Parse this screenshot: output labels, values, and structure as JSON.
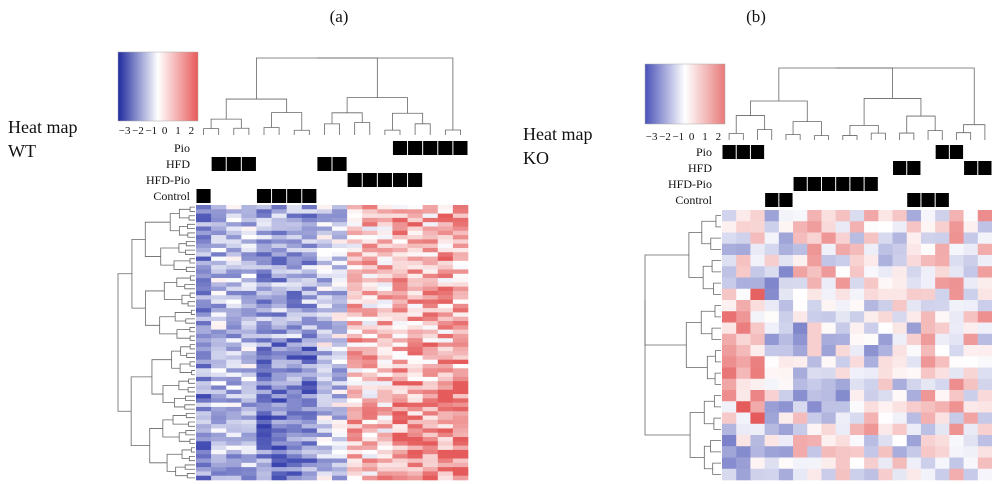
{
  "figure": {
    "panels": [
      {
        "panel_label": "(a)",
        "title_line1": "Heat map",
        "title_line2": "WT",
        "legend": {
          "ticks": [
            "−3",
            "−2",
            "−1",
            "0",
            "1",
            "2"
          ],
          "low_color": "#2a35a8",
          "mid_color": "#ffffff",
          "high_color": "#e55a5a"
        },
        "groups": [
          "Pio",
          "HFD",
          "HFD-Pio",
          "Control"
        ]
      },
      {
        "panel_label": "(b)",
        "title_line1": "Heat map",
        "title_line2": "KO",
        "legend": {
          "ticks": [
            "−3",
            "−2",
            "−1",
            "0",
            "1",
            "2"
          ],
          "low_color": "#2a35a8",
          "mid_color": "#ffffff",
          "high_color": "#e55a5a"
        },
        "groups": [
          "Pio",
          "HFD",
          "HFD-Pio",
          "Control"
        ]
      }
    ]
  },
  "chart_data": [
    {
      "type": "heatmap",
      "title": "",
      "colorscale_range": [
        -3,
        2
      ],
      "columns_count": 18,
      "rows_count": 64,
      "column_groups": {
        "Pio": [
          0,
          0,
          0,
          0,
          0,
          0,
          0,
          0,
          0,
          0,
          0,
          0,
          0,
          1,
          1,
          1,
          1,
          1
        ],
        "HFD": [
          0,
          1,
          1,
          1,
          0,
          0,
          0,
          0,
          1,
          1,
          0,
          0,
          0,
          0,
          0,
          0,
          0,
          0
        ],
        "HFD-Pio": [
          0,
          0,
          0,
          0,
          0,
          0,
          0,
          0,
          0,
          0,
          1,
          1,
          1,
          1,
          1,
          0,
          0,
          0
        ],
        "Control": [
          1,
          0,
          0,
          0,
          1,
          1,
          1,
          1,
          0,
          0,
          0,
          0,
          0,
          0,
          0,
          0,
          0,
          0
        ]
      },
      "pattern": "left columns predominantly negative (blue), right columns predominantly positive (red)"
    },
    {
      "type": "heatmap",
      "title": "",
      "colorscale_range": [
        -3,
        2
      ],
      "columns_count": 19,
      "rows_count": 24,
      "column_groups": {
        "Pio": [
          1,
          1,
          1,
          0,
          0,
          0,
          0,
          0,
          0,
          0,
          0,
          0,
          0,
          0,
          0,
          1,
          1,
          0,
          0
        ],
        "HFD": [
          0,
          0,
          0,
          0,
          0,
          0,
          0,
          0,
          0,
          0,
          0,
          0,
          1,
          1,
          0,
          0,
          0,
          1,
          1
        ],
        "HFD-Pio": [
          0,
          0,
          0,
          0,
          0,
          1,
          1,
          1,
          1,
          1,
          1,
          0,
          0,
          0,
          0,
          0,
          0,
          0,
          0
        ],
        "Control": [
          0,
          0,
          0,
          1,
          1,
          0,
          0,
          0,
          0,
          0,
          0,
          0,
          0,
          1,
          1,
          1,
          0,
          0,
          0
        ]
      },
      "pattern": "mixed; left columns red in middle rows, Control/HFD-Pio columns bluish"
    }
  ]
}
